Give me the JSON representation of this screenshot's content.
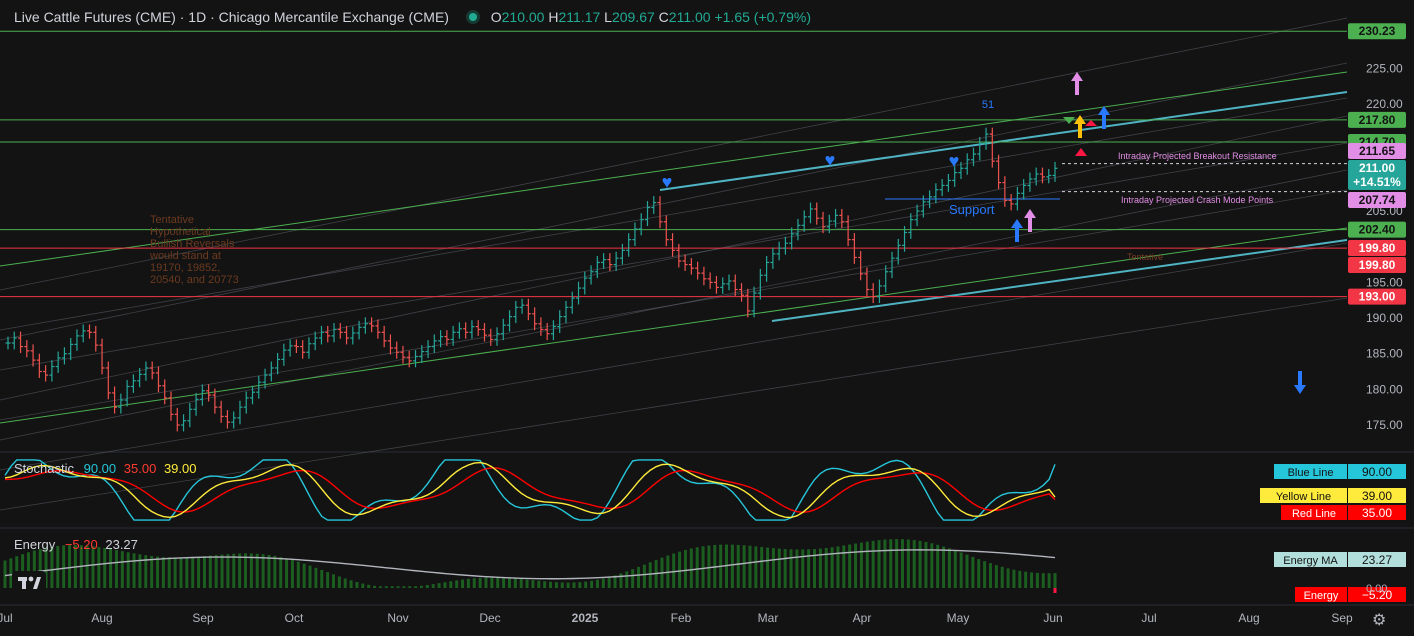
{
  "header": {
    "symbol": "Live Cattle Futures (CME)",
    "interval": "1D",
    "exchange": "Chicago Mercantile Exchange (CME)",
    "sep": "·",
    "o_label": "O",
    "o": "210.00",
    "h_label": "H",
    "h": "211.17",
    "l_label": "L",
    "l": "209.67",
    "c_label": "C",
    "c": "211.00",
    "change": "+1.65 (+0.79%)"
  },
  "stoch_pane": {
    "title": "Stochastic",
    "v1": "90.00",
    "v2": "35.00",
    "v3": "39.00",
    "labels": [
      {
        "name": "Blue Line",
        "value": "90.00",
        "bg": "#26c6da",
        "valbg": "#131313",
        "fg": "#131313"
      },
      {
        "name": "Yellow Line",
        "value": "39.00",
        "bg": "#ffeb3b",
        "valbg": "#ffeb3b",
        "fg": "#131313"
      },
      {
        "name": "Red Line",
        "value": "35.00",
        "bg": "#ff0000",
        "valbg": "#ff0000",
        "fg": "#ffffff"
      }
    ]
  },
  "energy_pane": {
    "title": "Energy",
    "v1": "−5.20",
    "v2": "23.27",
    "labels": [
      {
        "name": "Energy MA",
        "value": "23.27",
        "bg": "#b2dfdb",
        "valbg": "#131313",
        "fg": "#131313"
      },
      {
        "name": "Energy",
        "value": "−5.20",
        "bg": "#ff0000",
        "valbg": "#ff0000",
        "fg": "#ffffff"
      }
    ],
    "zero_label": "0.00"
  },
  "annotations": {
    "tentative_text": [
      "Tentative",
      "Hypothetical",
      "Bullish Reversals",
      "would stand at",
      "19170, 19852,",
      "20540, and 20773"
    ],
    "tentative_right": "Tentative",
    "breakout": "Intraday Projected Breakout Resistance",
    "crash": "Intraday Projected Crash Mode Points",
    "support": "Support",
    "count": "51"
  },
  "colors": {
    "up": "#26a69a",
    "down": "#ef5350",
    "green_line": "#4caf50",
    "red_line": "#f23645",
    "teal_channel": "#4fb3c3",
    "pink": "#e28ee6",
    "blue_arrow": "#2979ff"
  },
  "chart_data": {
    "type": "line",
    "title": "Live Cattle Futures (CME) · 1D · Chicago Mercantile Exchange (CME)",
    "ylim": [
      172,
      232
    ],
    "price_axis_ticks": [
      "225.00",
      "220.00",
      "215.00",
      "210.00",
      "205.00",
      "200.00",
      "195.00",
      "190.00",
      "185.00",
      "180.00",
      "175.00"
    ],
    "x_labels": [
      "Jul",
      "Aug",
      "Sep",
      "Oct",
      "Nov",
      "Dec",
      "2025",
      "Feb",
      "Mar",
      "Apr",
      "May",
      "Jun",
      "Jul",
      "Aug",
      "Sep"
    ],
    "levels": [
      {
        "price": 230.23,
        "label": "230.23",
        "color": "#4caf50"
      },
      {
        "price": 217.8,
        "label": "217.80",
        "color": "#4caf50"
      },
      {
        "price": 214.7,
        "label": "214.70",
        "color": "#4caf50"
      },
      {
        "price": 202.4,
        "label": "202.40",
        "color": "#4caf50"
      },
      {
        "price": 199.8,
        "label": "199.80",
        "color": "#f23645"
      },
      {
        "price": 193.0,
        "label": "193.00",
        "color": "#f23645"
      }
    ],
    "marker_labels": [
      {
        "price": 211.65,
        "label": "211.65",
        "bg": "#e28ee6",
        "fg": "#131313"
      },
      {
        "price": 211.0,
        "label": "211.00",
        "sub": "+14.51%",
        "bg": "#26a69a",
        "fg": "#ffffff"
      },
      {
        "price": 207.74,
        "label": "207.74",
        "bg": "#e28ee6",
        "fg": "#131313"
      },
      {
        "price": 199.8,
        "label": "199.80",
        "bg": "#f23645",
        "fg": "#ffffff"
      }
    ],
    "close_series": [
      186.5,
      187.2,
      186.0,
      185.4,
      184.1,
      182.5,
      182.0,
      183.2,
      184.4,
      185.0,
      186.3,
      187.5,
      188.2,
      188.0,
      186.2,
      183.0,
      179.5,
      177.5,
      178.5,
      180.4,
      181.2,
      182.1,
      183.0,
      182.3,
      180.5,
      178.8,
      176.5,
      175.0,
      175.6,
      177.2,
      178.6,
      179.8,
      179.2,
      177.5,
      176.2,
      175.4,
      176.0,
      177.5,
      178.8,
      179.6,
      181.0,
      182.0,
      183.0,
      184.2,
      185.5,
      186.1,
      186.0,
      185.2,
      186.4,
      187.2,
      188.0,
      187.5,
      188.4,
      188.0,
      187.2,
      187.9,
      188.7,
      189.2,
      188.9,
      188.0,
      186.8,
      185.8,
      185.2,
      184.5,
      184.0,
      184.6,
      185.3,
      186.0,
      186.8,
      187.4,
      187.0,
      188.0,
      188.5,
      188.0,
      188.8,
      188.4,
      187.6,
      187.0,
      187.8,
      189.0,
      190.2,
      191.5,
      191.8,
      190.6,
      189.2,
      188.4,
      187.8,
      188.8,
      190.2,
      191.5,
      192.8,
      194.2,
      195.6,
      196.5,
      197.8,
      198.2,
      197.5,
      198.4,
      199.5,
      201.0,
      202.5,
      203.8,
      205.5,
      206.2,
      203.5,
      201.0,
      199.5,
      198.0,
      197.5,
      197.0,
      196.3,
      195.5,
      195.0,
      194.3,
      194.8,
      195.2,
      194.0,
      193.2,
      191.0,
      193.5,
      196.0,
      197.8,
      199.0,
      199.8,
      200.5,
      201.8,
      203.0,
      204.2,
      205.3,
      204.0,
      202.8,
      203.6,
      204.4,
      203.5,
      201.0,
      198.5,
      196.2,
      194.0,
      193.0,
      194.5,
      196.5,
      198.4,
      200.2,
      202.0,
      203.8,
      205.0,
      206.3,
      207.0,
      208.0,
      208.6,
      209.3,
      210.4,
      211.0,
      212.2,
      213.0,
      214.5,
      215.8,
      212.0,
      209.0,
      206.5,
      206.0,
      207.5,
      208.6,
      209.5,
      210.2,
      209.8,
      210.0,
      211.0
    ],
    "stochastic": [
      {
        "name": "Blue Line",
        "color": "#26c6da",
        "last": 90.0
      },
      {
        "name": "Red Line",
        "color": "#ff0000",
        "last": 35.0
      },
      {
        "name": "Yellow Line",
        "color": "#ffeb3b",
        "last": 39.0
      }
    ],
    "energy": {
      "last": -5.2,
      "ma_last": 23.27
    }
  }
}
